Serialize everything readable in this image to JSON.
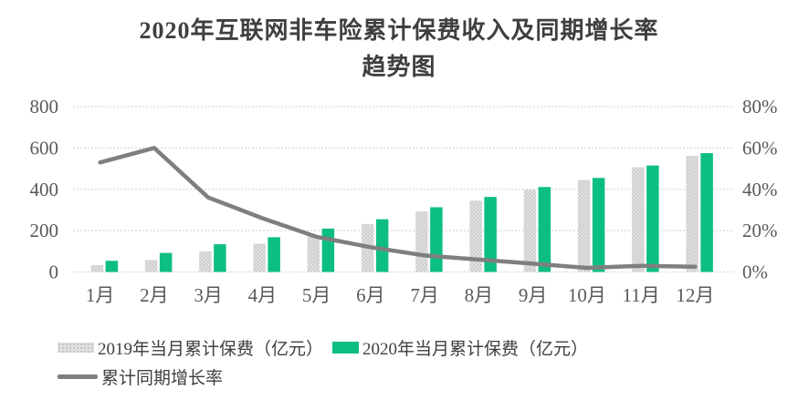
{
  "title": {
    "line1": "2020年互联网非车险累计保费收入及同期增长率",
    "line2": "趋势图"
  },
  "chart_data": {
    "type": "bar",
    "subtype": "grouped-bars-with-line",
    "title": "2020年互联网非车险累计保费收入及同期增长率 趋势图",
    "categories": [
      "1月",
      "2月",
      "3月",
      "4月",
      "5月",
      "6月",
      "7月",
      "8月",
      "9月",
      "10月",
      "11月",
      "12月"
    ],
    "series": [
      {
        "name": "2019年当月累计保费（亿元）",
        "type": "bar",
        "axis": "left",
        "values": [
          33,
          58,
          100,
          137,
          177,
          232,
          293,
          345,
          397,
          445,
          507,
          562
        ]
      },
      {
        "name": "2020年当月累计保费（亿元）",
        "type": "bar",
        "axis": "left",
        "values": [
          54,
          92,
          134,
          168,
          210,
          255,
          313,
          363,
          411,
          455,
          515,
          575
        ]
      },
      {
        "name": "累计同期增长率",
        "type": "line",
        "axis": "right",
        "values": [
          53,
          60,
          36,
          26,
          17,
          12,
          8,
          6,
          4,
          2,
          3,
          2.5
        ]
      }
    ],
    "left_axis": {
      "min": 0,
      "max": 800,
      "tick_labels": [
        "0",
        "200",
        "400",
        "600",
        "800"
      ]
    },
    "right_axis": {
      "min": 0,
      "max": 80,
      "tick_labels": [
        "0%",
        "20%",
        "40%",
        "60%",
        "80%"
      ]
    },
    "grid": true,
    "legend_position": "bottom-left"
  },
  "colors": {
    "bar_2019_bg": "#e0e0e0",
    "bar_2019_dot": "#c2c2c2",
    "bar_2020": "#0dbe84",
    "growth_line": "#7f7f7f",
    "gridline": "#d9d9d9",
    "axis_text": "#595959",
    "title_text": "#3f3f3f"
  }
}
